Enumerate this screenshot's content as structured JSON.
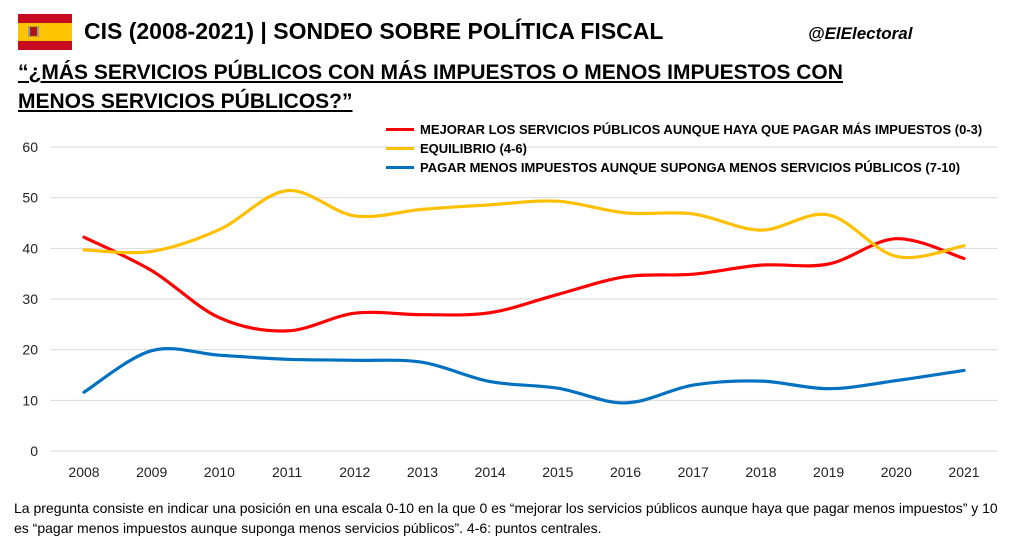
{
  "header": {
    "flag": "spain-flag",
    "title": "CIS (2008-2021) | SONDEO SOBRE POLÍTICA FISCAL",
    "handle": "@ElElectoral"
  },
  "question": "“¿MÁS SERVICIOS PÚBLICOS CON MÁS IMPUESTOS O MENOS IMPUESTOS CON MENOS SERVICIOS PÚBLICOS?”",
  "footnote": "La pregunta consiste en indicar una posición en una escala 0-10 en la que 0 es “mejorar los servicios públicos aunque haya que pagar menos impuestos” y 10 es “pagar menos impuestos aunque suponga menos servicios públicos”. 4-6: puntos centrales.",
  "chart_data": {
    "type": "line",
    "title": "",
    "xlabel": "",
    "ylabel": "",
    "x": [
      "2008",
      "2009",
      "2010",
      "2011",
      "2012",
      "2013",
      "2014",
      "2015",
      "2016",
      "2017",
      "2018",
      "2019",
      "2020",
      "2021"
    ],
    "ylim": [
      0,
      60
    ],
    "yticks": [
      0,
      10,
      20,
      30,
      40,
      50,
      60
    ],
    "grid": true,
    "legend_position": "top-right",
    "series": [
      {
        "name": "MEJORAR LOS SERVICIOS PÚBLICOS AUNQUE HAYA QUE PAGAR MÁS IMPUESTOS (0-3)",
        "color": "#ff0000",
        "values": [
          42.2,
          35.6,
          26.3,
          23.7,
          27.2,
          26.9,
          27.3,
          30.9,
          34.4,
          34.9,
          36.7,
          36.9,
          41.9,
          38.0
        ]
      },
      {
        "name": "EQUILIBRIO (4-6)",
        "color": "#ffc000",
        "values": [
          39.7,
          39.4,
          43.7,
          51.4,
          46.4,
          47.7,
          48.6,
          49.3,
          47.0,
          46.8,
          43.6,
          46.6,
          38.4,
          40.5
        ]
      },
      {
        "name": "PAGAR MENOS IMPUESTOS AUNQUE SUPONGA MENOS SERVICIOS PÚBLICOS (7-10)",
        "color": "#0070c0",
        "values": [
          11.6,
          19.8,
          18.9,
          18.1,
          17.9,
          17.5,
          13.7,
          12.4,
          9.5,
          13.0,
          13.8,
          12.3,
          13.9,
          15.9
        ]
      }
    ]
  }
}
